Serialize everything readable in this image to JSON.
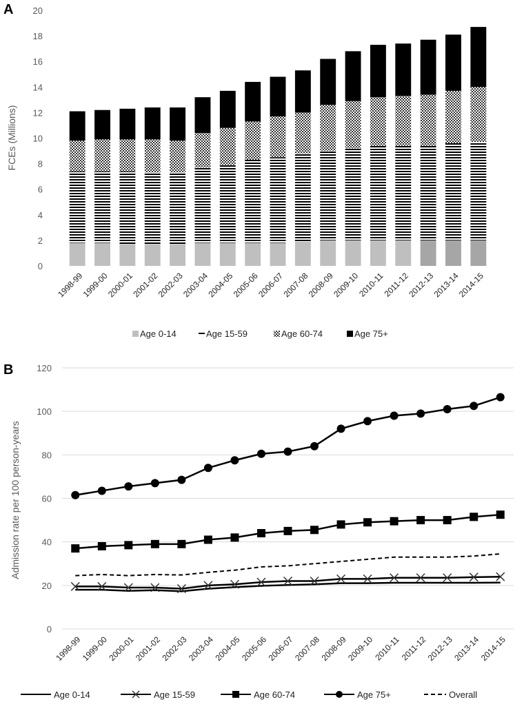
{
  "chart_data": [
    {
      "panel": "A",
      "type": "bar",
      "stacked": true,
      "ylabel": "FCEs (Millions)",
      "ylim": [
        0,
        20
      ],
      "yticks": [
        0,
        2,
        4,
        6,
        8,
        10,
        12,
        14,
        16,
        18,
        20
      ],
      "grid": false,
      "legend_position": "bottom",
      "categories": [
        "1998-99",
        "1999-00",
        "2000-01",
        "2001-02",
        "2002-03",
        "2003-04",
        "2004-05",
        "2005-06",
        "2006-07",
        "2007-08",
        "2008-09",
        "2009-10",
        "2010-11",
        "2011-12",
        "2012-13",
        "2013-14",
        "2014-15"
      ],
      "series": [
        {
          "name": "Age 0-14",
          "pattern": "light-gray",
          "values": [
            1.8,
            1.8,
            1.7,
            1.7,
            1.7,
            1.8,
            1.8,
            1.8,
            1.8,
            1.9,
            2.0,
            2.0,
            2.0,
            2.0,
            2.0,
            2.0,
            2.0
          ]
        },
        {
          "name": "Age 15-59",
          "pattern": "horizontal-lines",
          "values": [
            5.6,
            5.6,
            5.7,
            5.6,
            5.6,
            5.9,
            6.1,
            6.5,
            6.7,
            6.9,
            7.0,
            7.2,
            7.4,
            7.4,
            7.4,
            7.6,
            7.7
          ]
        },
        {
          "name": "Age 60-74",
          "pattern": "crosshatch",
          "values": [
            2.4,
            2.5,
            2.5,
            2.6,
            2.5,
            2.7,
            2.9,
            3.0,
            3.2,
            3.2,
            3.6,
            3.7,
            3.8,
            3.9,
            4.0,
            4.1,
            4.3
          ]
        },
        {
          "name": "Age 75+",
          "pattern": "black",
          "values": [
            2.3,
            2.3,
            2.4,
            2.5,
            2.6,
            2.8,
            2.9,
            3.1,
            3.1,
            3.3,
            3.6,
            3.9,
            4.1,
            4.1,
            4.3,
            4.4,
            4.7
          ]
        }
      ]
    },
    {
      "panel": "B",
      "type": "line",
      "ylabel": "Admission rate per 100 person-years",
      "ylim": [
        0,
        120
      ],
      "yticks": [
        0,
        20,
        40,
        60,
        80,
        100,
        120
      ],
      "grid": true,
      "legend_position": "bottom",
      "categories": [
        "1998-99",
        "1999-00",
        "2000-01",
        "2001-02",
        "2002-03",
        "2003-04",
        "2004-05",
        "2005-06",
        "2006-07",
        "2007-08",
        "2008-09",
        "2009-10",
        "2010-11",
        "2011-12",
        "2012-13",
        "2013-14",
        "2014-15"
      ],
      "series": [
        {
          "name": "Age 0-14",
          "marker": "none",
          "dash": "solid",
          "values": [
            18,
            18,
            17.5,
            17.8,
            17.3,
            18.5,
            19.2,
            19.8,
            20.2,
            20.5,
            21,
            21,
            21.2,
            21.2,
            21.2,
            21.2,
            21.3
          ]
        },
        {
          "name": "Age 15-59",
          "marker": "x",
          "dash": "solid",
          "values": [
            19.5,
            19.5,
            19,
            19,
            18.5,
            20,
            20.5,
            21.5,
            22,
            22,
            23,
            23,
            23.5,
            23.5,
            23.5,
            23.8,
            24
          ]
        },
        {
          "name": "Age 60-74",
          "marker": "square",
          "dash": "solid",
          "values": [
            37,
            38,
            38.5,
            39,
            39,
            41,
            42,
            44,
            45,
            45.5,
            48,
            49,
            49.5,
            50,
            50,
            51.5,
            52.5
          ]
        },
        {
          "name": "Age 75+",
          "marker": "circle",
          "dash": "solid",
          "values": [
            61.5,
            63.5,
            65.5,
            67,
            68.5,
            74,
            77.5,
            80.5,
            81.5,
            84,
            92,
            95.5,
            98,
            99,
            101,
            102.5,
            106.5
          ]
        },
        {
          "name": "Overall",
          "marker": "none",
          "dash": "dashed",
          "values": [
            24.5,
            25,
            24.5,
            25,
            24.8,
            26,
            27,
            28.5,
            29,
            30,
            31,
            32,
            33,
            33,
            33,
            33.5,
            34.5
          ]
        }
      ]
    }
  ]
}
